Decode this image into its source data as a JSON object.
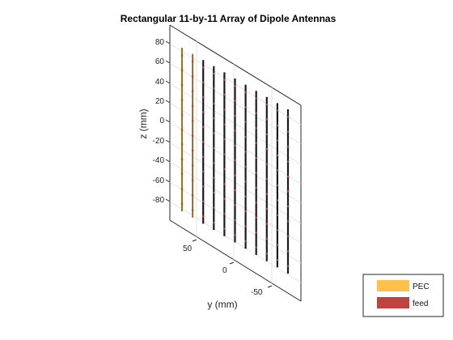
{
  "title": "Rectangular 11-by-11 Array of Dipole Antennas",
  "axes": {
    "zlabel": "z (mm)",
    "ylabel": "y (mm)",
    "z_ticks": [
      "80",
      "60",
      "40",
      "20",
      "0",
      "-20",
      "-40",
      "-60",
      "-80"
    ],
    "y_ticks": [
      "50",
      "0",
      "-50"
    ]
  },
  "legend": {
    "items": [
      {
        "label": "PEC",
        "color": "#FFC04D"
      },
      {
        "label": "feed",
        "color": "#C0433E"
      }
    ]
  },
  "colors": {
    "frame": "#262626",
    "grid": "#e3e3e3",
    "dipole": "#1a1a1a",
    "pec": "#F2B134",
    "feed": "#C0433E"
  },
  "array": {
    "rows": 11,
    "columns": 11
  }
}
